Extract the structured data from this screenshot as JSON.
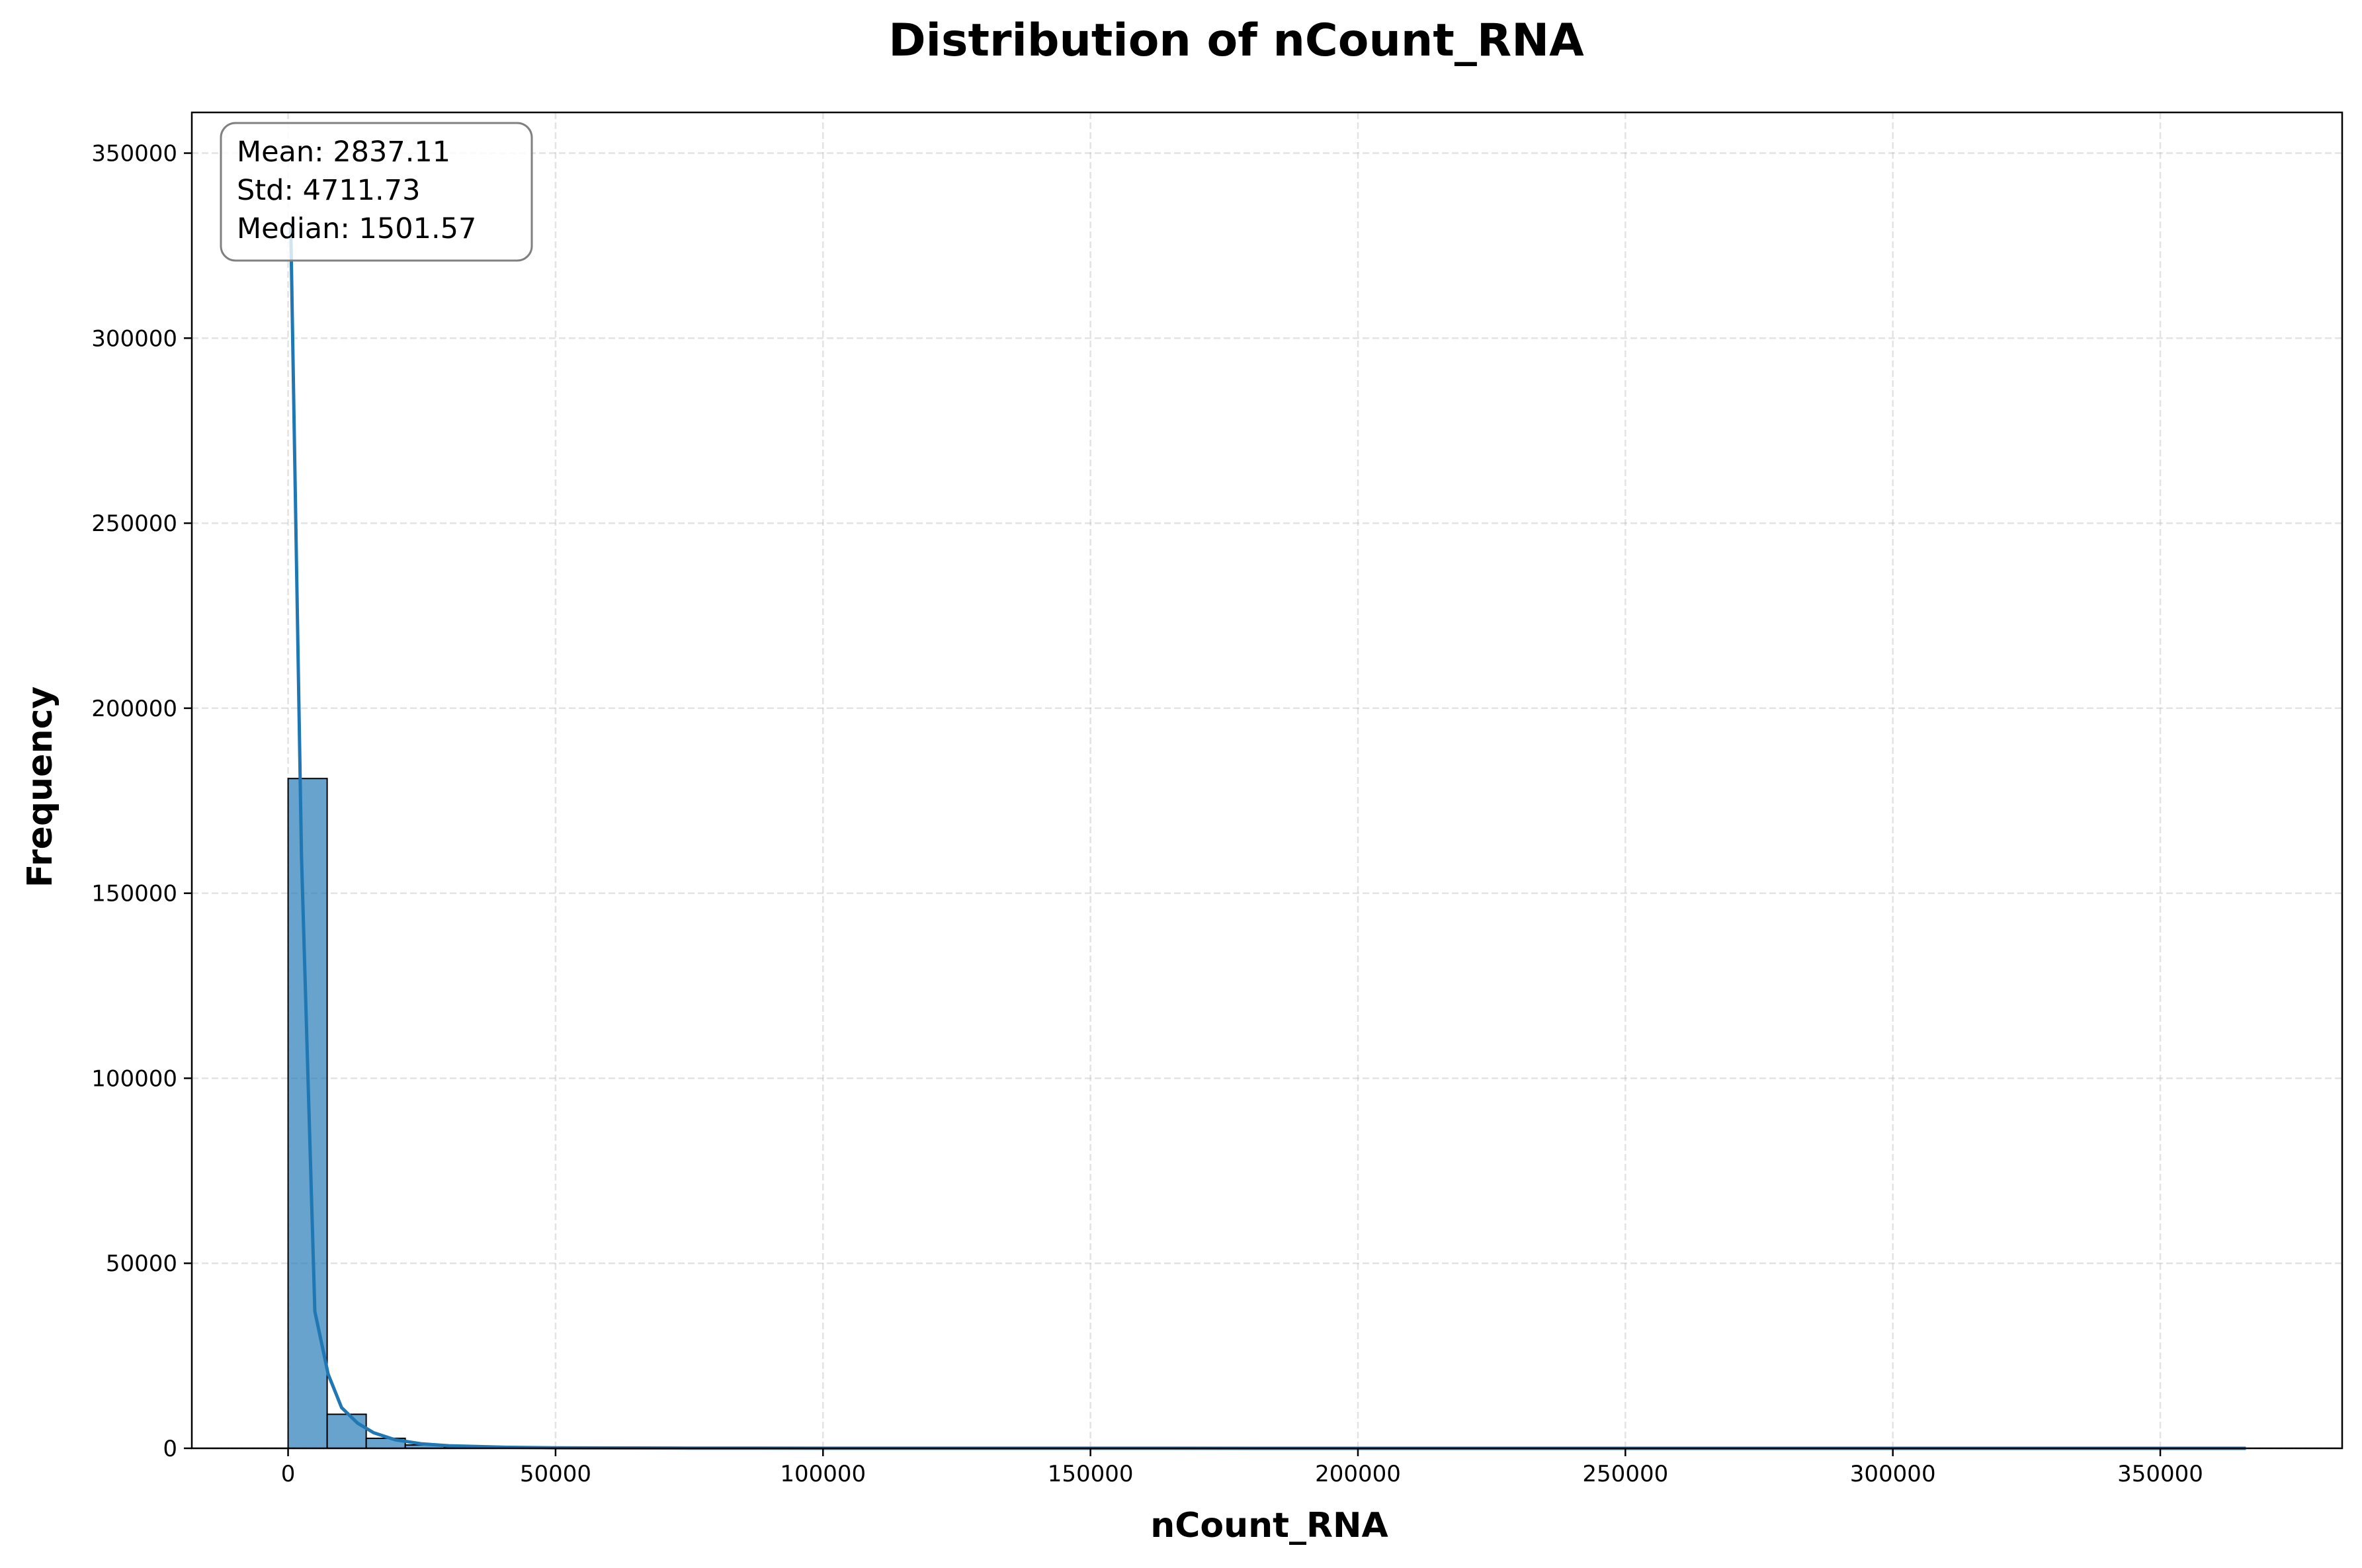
{
  "chart_data": {
    "type": "bar",
    "title": "Distribution of nCount_RNA",
    "xlabel": "nCount_RNA",
    "ylabel": "Frequency",
    "xlim": [
      -18000,
      384000
    ],
    "ylim": [
      0,
      361000
    ],
    "xticks": [
      0,
      50000,
      100000,
      150000,
      200000,
      250000,
      300000,
      350000
    ],
    "yticks": [
      0,
      50000,
      100000,
      150000,
      200000,
      250000,
      300000,
      350000
    ],
    "grid": true,
    "bar_color": "#1f77b4",
    "line_color": "#1f77b4",
    "bin_width": 7300,
    "bins": [
      {
        "x0": 0,
        "x1": 7300,
        "count": 181000
      },
      {
        "x0": 7300,
        "x1": 14600,
        "count": 9200
      },
      {
        "x0": 14600,
        "x1": 21900,
        "count": 2700
      },
      {
        "x0": 21900,
        "x1": 29200,
        "count": 900
      },
      {
        "x0": 29200,
        "x1": 36500,
        "count": 400
      },
      {
        "x0": 36500,
        "x1": 43800,
        "count": 200
      },
      {
        "x0": 43800,
        "x1": 51100,
        "count": 100
      }
    ],
    "kde": [
      [
        500,
        330000
      ],
      [
        2500,
        160000
      ],
      [
        5000,
        37000
      ],
      [
        7500,
        20000
      ],
      [
        10000,
        11000
      ],
      [
        13000,
        6800
      ],
      [
        16000,
        4200
      ],
      [
        20000,
        2300
      ],
      [
        25000,
        1200
      ],
      [
        30000,
        700
      ],
      [
        40000,
        300
      ],
      [
        50000,
        150
      ],
      [
        75000,
        50
      ],
      [
        100000,
        20
      ],
      [
        150000,
        10
      ],
      [
        200000,
        5
      ],
      [
        250000,
        3
      ],
      [
        300000,
        2
      ],
      [
        366000,
        0
      ]
    ],
    "stats": {
      "mean": "Mean: 2837.11",
      "std": "Std: 4711.73",
      "median": "Median: 1501.57",
      "position": "top-left"
    }
  }
}
